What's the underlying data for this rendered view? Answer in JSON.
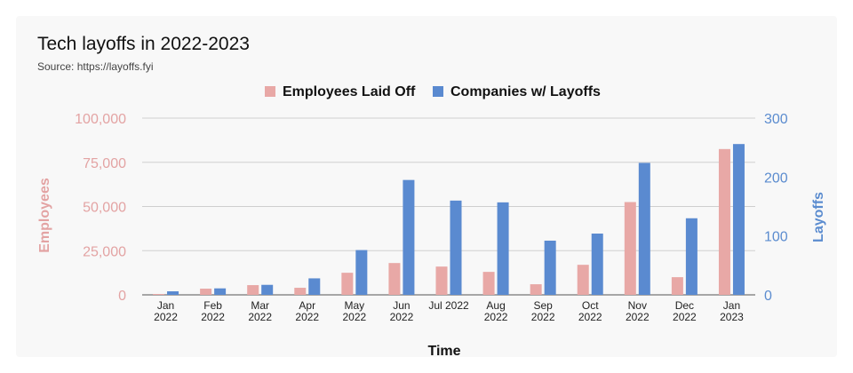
{
  "title": "Tech layoffs in 2022-2023",
  "subtitle": "Source: https://layoffs.fyi",
  "colors": {
    "employees": "#e8a8a6",
    "companies": "#5a8ad0",
    "left_axis": "#e3a3a3",
    "right_axis": "#5b8ccf"
  },
  "chart_data": {
    "type": "bar",
    "title": "Tech layoffs in 2022-2023",
    "subtitle": "Source: https://layoffs.fyi",
    "xlabel": "Time",
    "ylabel": "Employees",
    "y2label": "Layoffs",
    "legend_position": "top",
    "grid": true,
    "categories": [
      [
        "Jan",
        "2022"
      ],
      [
        "Feb",
        "2022"
      ],
      [
        "Mar",
        "2022"
      ],
      [
        "Apr",
        "2022"
      ],
      [
        "May",
        "2022"
      ],
      [
        "Jun",
        "2022"
      ],
      [
        "Jul 2022"
      ],
      [
        "Aug",
        "2022"
      ],
      [
        "Sep",
        "2022"
      ],
      [
        "Oct",
        "2022"
      ],
      [
        "Nov",
        "2022"
      ],
      [
        "Dec",
        "2022"
      ],
      [
        "Jan",
        "2023"
      ]
    ],
    "ylim": [
      0,
      100000
    ],
    "y_ticks": [
      "0",
      "25,000",
      "50,000",
      "75,000",
      "100,000"
    ],
    "y2lim": [
      0,
      300
    ],
    "y2_ticks": [
      "0",
      "100",
      "200",
      "300"
    ],
    "series": [
      {
        "name": "Employees Laid Off",
        "axis": "left",
        "values": [
          500,
          3500,
          5500,
          4000,
          12500,
          18000,
          16000,
          13000,
          6000,
          17000,
          52500,
          10000,
          82500
        ]
      },
      {
        "name": "Companies w/ Layoffs",
        "axis": "right",
        "values": [
          6,
          11,
          17,
          28,
          76,
          195,
          160,
          157,
          92,
          104,
          224,
          130,
          256
        ]
      }
    ]
  }
}
